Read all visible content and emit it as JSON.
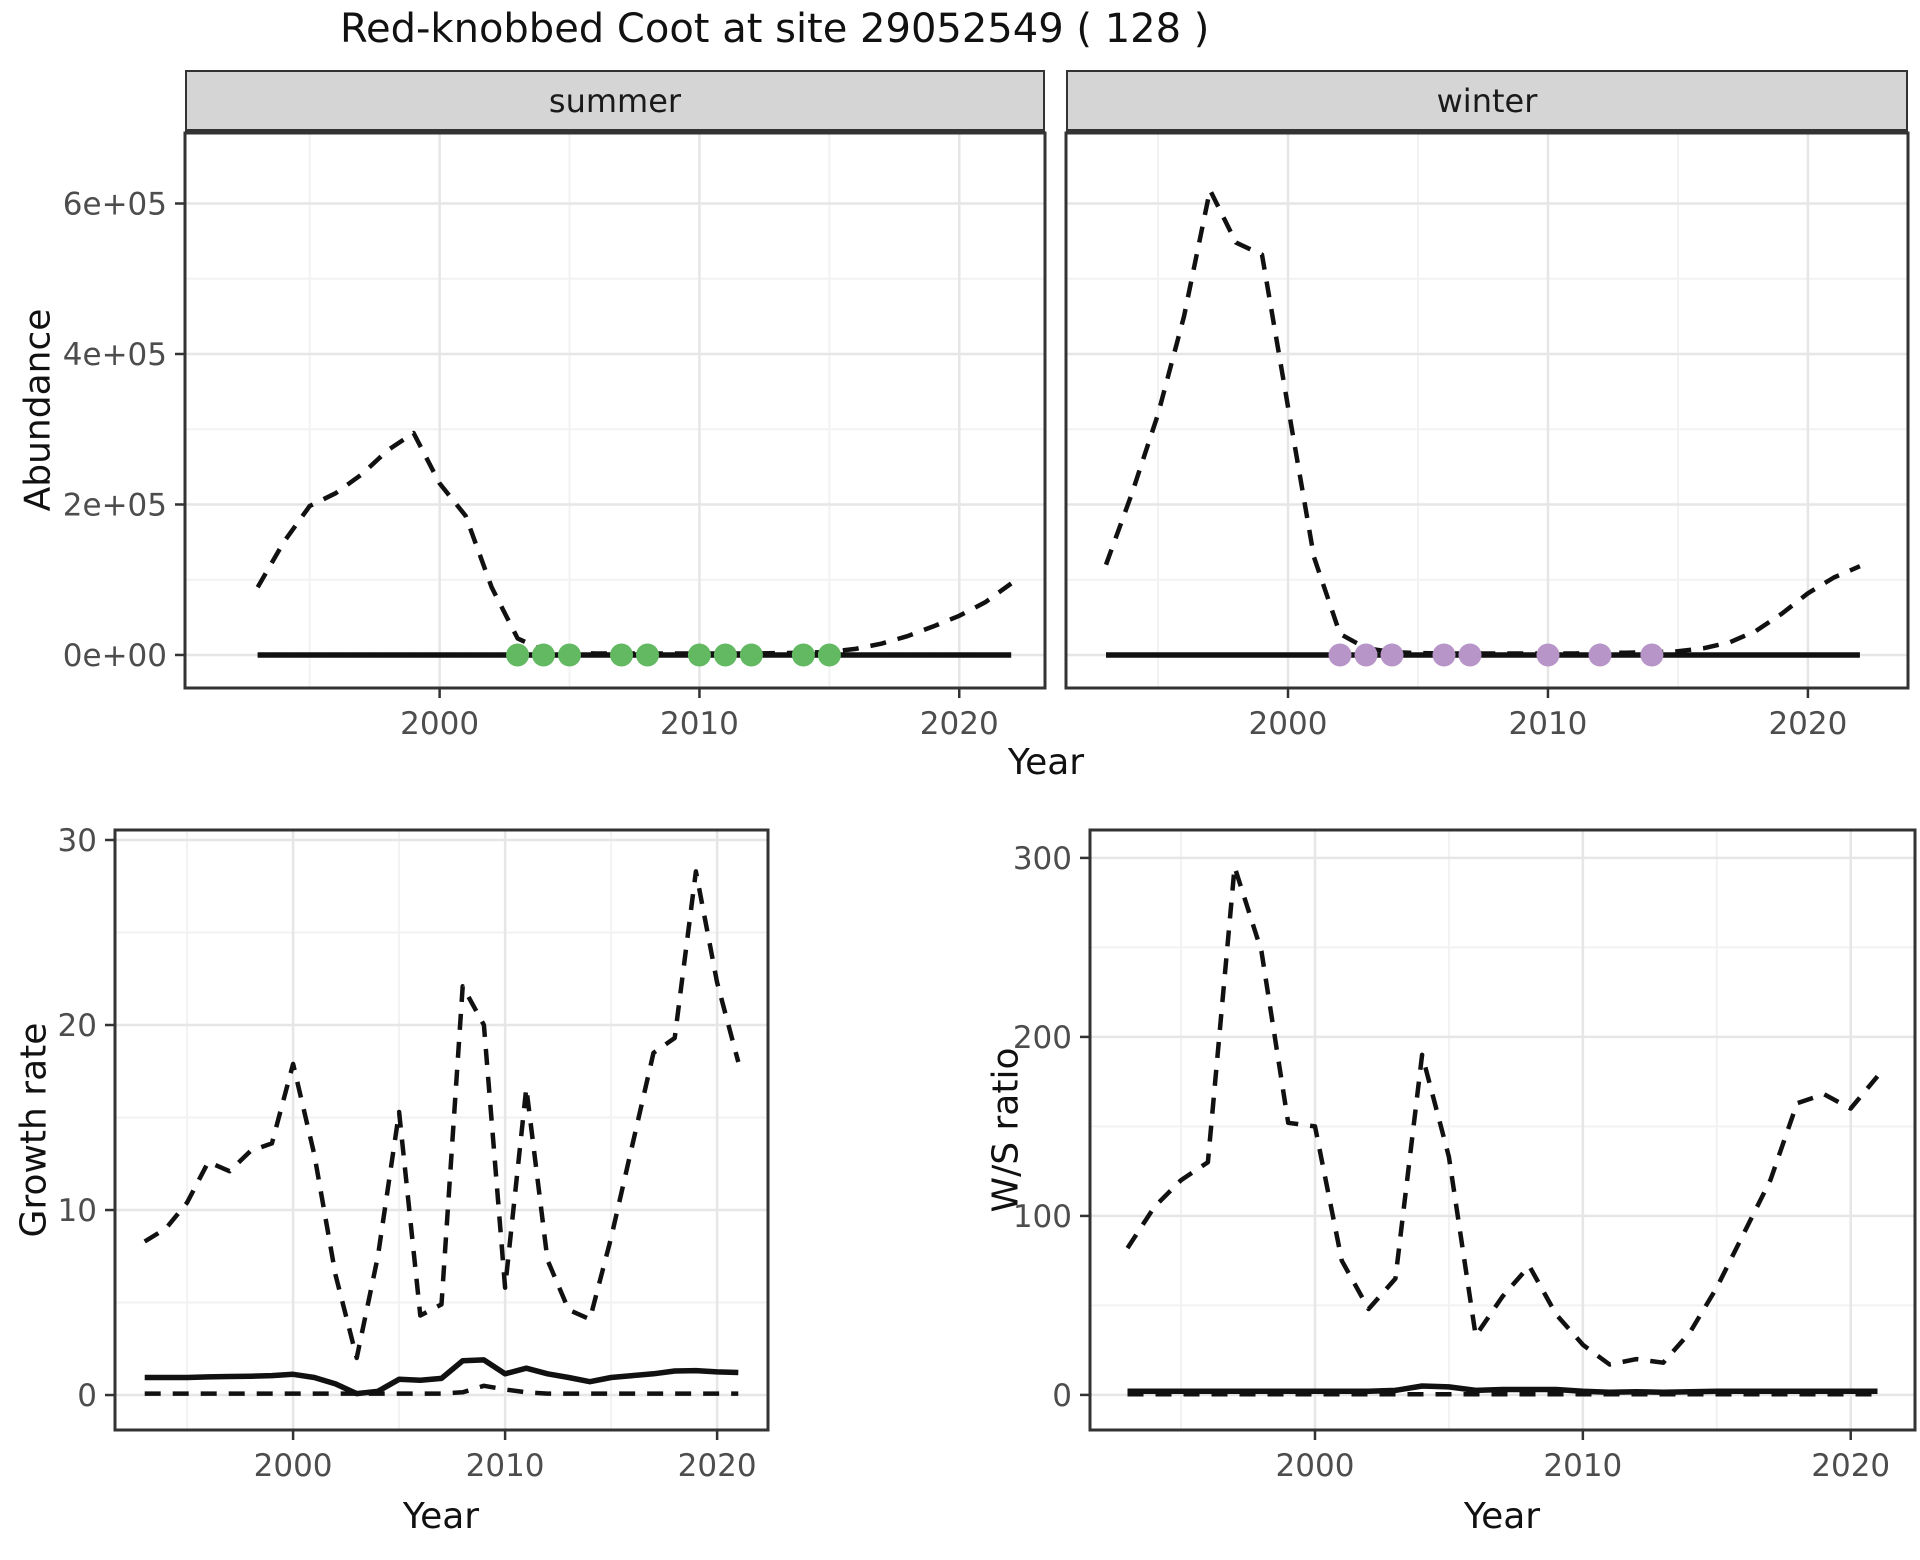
{
  "title": "Red-knobbed Coot at site 29052549 ( 128 )",
  "strips": {
    "summer": "summer",
    "winter": "winter"
  },
  "axis_titles": {
    "abundance": "Abundance",
    "growth": "Growth rate",
    "ws": "W/S ratio",
    "year": "Year"
  },
  "colors": {
    "line": "#111111",
    "summer_points": "#62b962",
    "winter_points": "#b795c8",
    "strip_bg": "#d5d5d5",
    "panel_border": "#333333",
    "grid_major": "#e6e6e6",
    "grid_minor": "#f2f2f2",
    "tick_text": "#4d4d4d"
  },
  "chart_data": [
    {
      "id": "abundance_summer",
      "type": "line",
      "facet": "summer",
      "ylabel": "Abundance",
      "xlabel": "Year",
      "x_ticks": {
        "values": [
          2000,
          2010,
          2020
        ],
        "labels": [
          "2000",
          "2010",
          "2020"
        ],
        "minor": [
          1995,
          2005,
          2015
        ]
      },
      "y_ticks": {
        "values": [
          0,
          200000,
          400000,
          600000
        ],
        "labels": [
          "0e+00",
          "2e+05",
          "4e+05",
          "6e+05"
        ],
        "minor": [
          100000,
          300000,
          500000
        ]
      },
      "xlim": [
        1990.2,
        2023.3
      ],
      "ylim": [
        -43900,
        693700
      ],
      "series": [
        {
          "name": "estimate",
          "style": "solid",
          "x": [
            1993,
            2022
          ],
          "y": [
            0,
            0
          ]
        },
        {
          "name": "lower_ci",
          "style": "dashed",
          "x": [
            1993,
            2021
          ],
          "y": [
            0,
            0
          ]
        },
        {
          "name": "upper_ci",
          "style": "dashed",
          "x": [
            1993,
            1994,
            1995,
            1996,
            1997,
            1998,
            1999,
            2000,
            2001,
            2002,
            2003,
            2004,
            2005,
            2006,
            2007,
            2008,
            2009,
            2010,
            2011,
            2012,
            2013,
            2014,
            2015,
            2016,
            2017,
            2018,
            2019,
            2020,
            2021,
            2022
          ],
          "y": [
            90000,
            150000,
            198000,
            215000,
            240000,
            272000,
            295000,
            228000,
            185000,
            90000,
            22000,
            6000,
            2500,
            2000,
            2000,
            2000,
            2000,
            2000,
            2000,
            2000,
            2500,
            3000,
            4000,
            8000,
            15000,
            25000,
            38000,
            52000,
            70000,
            95000
          ]
        }
      ],
      "points": {
        "name": "survey-years",
        "color_key": "summer_points",
        "value": 0,
        "x": [
          2003,
          2004,
          2005,
          2007,
          2008,
          2010,
          2011,
          2012,
          2014,
          2015
        ]
      }
    },
    {
      "id": "abundance_winter",
      "type": "line",
      "facet": "winter",
      "ylabel": "Abundance",
      "xlabel": "Year",
      "x_ticks": {
        "values": [
          2000,
          2010,
          2020
        ],
        "labels": [
          "2000",
          "2010",
          "2020"
        ],
        "minor": [
          1995,
          2005,
          2015
        ]
      },
      "y_ticks": {
        "values": [
          0,
          200000,
          400000,
          600000
        ],
        "labels": [
          "0e+00",
          "2e+05",
          "4e+05",
          "6e+05"
        ],
        "minor": [
          100000,
          300000,
          500000
        ]
      },
      "xlim": [
        1991.46,
        2023.85
      ],
      "ylim": [
        -43900,
        693700
      ],
      "series": [
        {
          "name": "estimate",
          "style": "solid",
          "x": [
            1993,
            2022
          ],
          "y": [
            0,
            0
          ]
        },
        {
          "name": "lower_ci",
          "style": "dashed",
          "x": [
            1993,
            2021
          ],
          "y": [
            0,
            0
          ]
        },
        {
          "name": "upper_ci",
          "style": "dashed",
          "x": [
            1993,
            1994,
            1995,
            1996,
            1997,
            1998,
            1999,
            2000,
            2001,
            2002,
            2003,
            2004,
            2005,
            2006,
            2007,
            2008,
            2009,
            2010,
            2011,
            2012,
            2013,
            2014,
            2015,
            2016,
            2017,
            2018,
            2019,
            2020,
            2021,
            2022
          ],
          "y": [
            120000,
            215000,
            320000,
            450000,
            618000,
            548000,
            532000,
            330000,
            130000,
            28000,
            9000,
            4000,
            2500,
            2000,
            2000,
            2000,
            2000,
            2000,
            2000,
            2500,
            3000,
            3500,
            5000,
            9000,
            17000,
            32000,
            55000,
            82000,
            103000,
            118000
          ]
        }
      ],
      "points": {
        "name": "survey-years",
        "color_key": "winter_points",
        "value": 0,
        "x": [
          2002,
          2003,
          2004,
          2006,
          2007,
          2010,
          2012,
          2014
        ]
      }
    },
    {
      "id": "growth_rate",
      "type": "line",
      "ylabel": "Growth rate",
      "xlabel": "Year",
      "x_ticks": {
        "values": [
          2000,
          2010,
          2020
        ],
        "labels": [
          "2000",
          "2010",
          "2020"
        ],
        "minor": [
          1995,
          2005,
          2015
        ]
      },
      "y_ticks": {
        "values": [
          0,
          10,
          20,
          30
        ],
        "labels": [
          "0",
          "10",
          "20",
          "30"
        ],
        "minor": [
          5,
          15,
          25
        ]
      },
      "xlim": [
        1991.6,
        2022.4
      ],
      "ylim": [
        -1.89,
        30.54
      ],
      "series": [
        {
          "name": "upper_ci",
          "style": "dashed",
          "x": [
            1993,
            1994,
            1995,
            1996,
            1997,
            1998,
            1999,
            2000,
            2001,
            2002,
            2003,
            2004,
            2005,
            2006,
            2007,
            2008,
            2009,
            2010,
            2011,
            2012,
            2013,
            2014,
            2015,
            2016,
            2017,
            2018,
            2019,
            2020,
            2021
          ],
          "y": [
            8.3,
            9.0,
            10.4,
            12.6,
            12.1,
            13.2,
            13.6,
            17.9,
            13.0,
            6.5,
            2.0,
            7.5,
            15.3,
            4.3,
            4.9,
            22.1,
            20.0,
            5.8,
            16.6,
            7.3,
            4.6,
            4.1,
            8.5,
            13.5,
            18.5,
            19.3,
            28.3,
            22.3,
            18.0
          ]
        },
        {
          "name": "median",
          "style": "solid",
          "x": [
            1993,
            1994,
            1995,
            1996,
            1997,
            1998,
            1999,
            2000,
            2001,
            2002,
            2003,
            2004,
            2005,
            2006,
            2007,
            2008,
            2009,
            2010,
            2011,
            2012,
            2013,
            2014,
            2015,
            2016,
            2017,
            2018,
            2019,
            2020,
            2021
          ],
          "y": [
            0.95,
            0.95,
            0.95,
            0.98,
            1.0,
            1.02,
            1.05,
            1.12,
            0.95,
            0.6,
            0.08,
            0.2,
            0.85,
            0.8,
            0.9,
            1.85,
            1.9,
            1.15,
            1.45,
            1.15,
            0.95,
            0.72,
            0.95,
            1.05,
            1.15,
            1.3,
            1.32,
            1.25,
            1.22
          ]
        },
        {
          "name": "lower_ci",
          "style": "dashed",
          "x": [
            1993,
            1994,
            1995,
            1996,
            1997,
            1998,
            1999,
            2000,
            2001,
            2002,
            2003,
            2004,
            2005,
            2006,
            2007,
            2008,
            2009,
            2010,
            2011,
            2012,
            2013,
            2014,
            2015,
            2016,
            2017,
            2018,
            2019,
            2020,
            2021
          ],
          "y": [
            0.08,
            0.08,
            0.08,
            0.08,
            0.08,
            0.08,
            0.08,
            0.08,
            0.08,
            0.08,
            0.08,
            0.08,
            0.08,
            0.08,
            0.08,
            0.15,
            0.5,
            0.3,
            0.15,
            0.08,
            0.08,
            0.08,
            0.08,
            0.08,
            0.08,
            0.08,
            0.08,
            0.08,
            0.08
          ]
        }
      ]
    },
    {
      "id": "ws_ratio",
      "type": "line",
      "ylabel": "W/S ratio",
      "xlabel": "Year",
      "x_ticks": {
        "values": [
          2000,
          2010,
          2020
        ],
        "labels": [
          "2000",
          "2010",
          "2020"
        ],
        "minor": [
          1995,
          2005,
          2015
        ]
      },
      "y_ticks": {
        "values": [
          0,
          100,
          200,
          300
        ],
        "labels": [
          "0",
          "100",
          "200",
          "300"
        ],
        "minor": [
          50,
          150,
          250
        ]
      },
      "xlim": [
        1991.6,
        2022.4
      ],
      "ylim": [
        -19.6,
        315.6
      ],
      "series": [
        {
          "name": "upper_ci",
          "style": "dashed",
          "x": [
            1993,
            1994,
            1995,
            1996,
            1997,
            1998,
            1999,
            2000,
            2001,
            2002,
            2003,
            2004,
            2005,
            2006,
            2007,
            2008,
            2009,
            2010,
            2011,
            2012,
            2013,
            2014,
            2015,
            2016,
            2017,
            2018,
            2019,
            2020,
            2021
          ],
          "y": [
            82,
            105,
            120,
            130,
            295,
            248,
            152,
            150,
            75,
            48,
            65,
            190,
            133,
            33,
            55,
            72,
            45,
            28,
            17,
            20,
            18,
            35,
            60,
            90,
            120,
            163,
            168,
            160,
            178
          ]
        },
        {
          "name": "median",
          "style": "solid",
          "x": [
            1993,
            1994,
            1995,
            1996,
            1997,
            1998,
            1999,
            2000,
            2001,
            2002,
            2003,
            2004,
            2005,
            2006,
            2007,
            2008,
            2009,
            2010,
            2011,
            2012,
            2013,
            2014,
            2015,
            2016,
            2017,
            2018,
            2019,
            2020,
            2021
          ],
          "y": [
            2,
            2,
            2,
            2,
            2,
            2,
            2,
            2,
            2,
            2,
            2.5,
            5,
            4.5,
            2.5,
            3,
            3,
            3,
            2,
            1.5,
            1.8,
            1.5,
            1.8,
            2,
            2,
            2,
            2,
            2,
            2,
            2
          ]
        },
        {
          "name": "lower_ci",
          "style": "dashed",
          "x": [
            1993,
            1994,
            1995,
            1996,
            1997,
            1998,
            1999,
            2000,
            2001,
            2002,
            2003,
            2004,
            2005,
            2006,
            2007,
            2008,
            2009,
            2010,
            2011,
            2012,
            2013,
            2014,
            2015,
            2016,
            2017,
            2018,
            2019,
            2020,
            2021
          ],
          "y": [
            0.4,
            0.4,
            0.4,
            0.4,
            0.4,
            0.4,
            0.4,
            0.4,
            0.4,
            0.4,
            0.4,
            0.4,
            0.4,
            0.4,
            0.4,
            0.4,
            0.4,
            0.4,
            0.4,
            0.4,
            0.4,
            0.4,
            0.4,
            0.4,
            0.4,
            0.4,
            0.4,
            0.4,
            0.4
          ]
        }
      ]
    }
  ]
}
